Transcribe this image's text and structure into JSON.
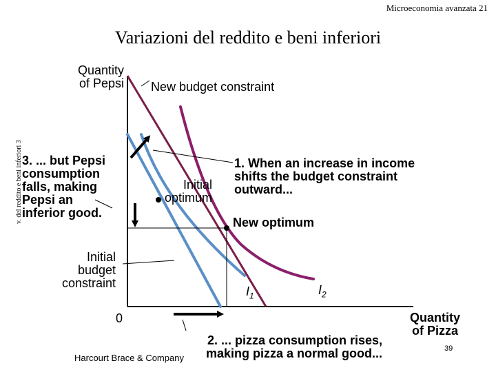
{
  "header": {
    "course": "Microeconomia avanzata",
    "slide_number": "21"
  },
  "title": "Variazioni del reddito e beni inferiori",
  "side_label": "v. del reddito e beni inferiori 3",
  "diagram": {
    "y_axis_label_line1": "Quantity",
    "y_axis_label_line2": "of Pepsi",
    "x_axis_label_line1": "Quantity",
    "x_axis_label_line2": "of Pizza",
    "origin": "0",
    "new_budget_constraint": "New budget constraint",
    "initial_budget_constraint": [
      "Initial",
      "budget",
      "constraint"
    ],
    "initial_optimum": [
      "Initial",
      "optimum"
    ],
    "new_optimum": "New optimum",
    "curve_i1": "I",
    "curve_i1_sub": "1",
    "curve_i2": "I",
    "curve_i2_sub": "2",
    "note_1": [
      "1. When an increase in income",
      "shifts the budget constraint",
      "outward..."
    ],
    "note_2": [
      "2. ... pizza consumption rises,",
      "making pizza a normal good..."
    ],
    "note_3": [
      "3. ... but Pepsi",
      "consumption",
      "falls, making",
      "Pepsi an",
      "inferior good."
    ],
    "colors": {
      "budget_line": "#7a1f4a",
      "indifference_i1": "#5b8fc7",
      "indifference_i2": "#8b1f6a",
      "axis": "#000000"
    }
  },
  "footer": {
    "publisher": "Harcourt Brace & Company",
    "page": "39"
  }
}
